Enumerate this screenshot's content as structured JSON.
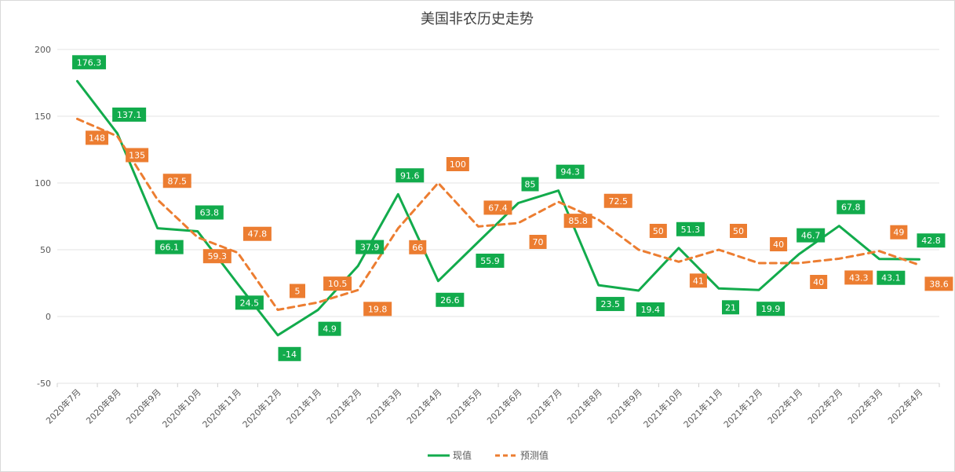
{
  "chart_data": {
    "type": "line",
    "title": "美国非农历史走势",
    "xlabel": "",
    "ylabel": "",
    "ylim": [
      -50,
      200
    ],
    "yticks": [
      -50,
      0,
      50,
      100,
      150,
      200
    ],
    "grid": true,
    "legend_position": "bottom",
    "categories": [
      "2020年7月",
      "2020年8月",
      "2020年9月",
      "2020年10月",
      "2020年11月",
      "2020年12月",
      "2021年1月",
      "2021年2月",
      "2021年3月",
      "2021年4月",
      "2021年5月",
      "2021年6月",
      "2021年7月",
      "2021年8月",
      "2021年9月",
      "2021年10月",
      "2021年11月",
      "2021年12月",
      "2022年1月",
      "2022年2月",
      "2022年3月",
      "2022年4月"
    ],
    "series": [
      {
        "name": "现值",
        "color": "#12ab4c",
        "dash": false,
        "values": [
          176.3,
          137.1,
          66.1,
          63.8,
          24.5,
          -14,
          4.9,
          37.9,
          91.6,
          26.6,
          55.9,
          85,
          94.3,
          23.5,
          19.4,
          51.3,
          21,
          19.9,
          46.7,
          67.8,
          43.1,
          42.8
        ]
      },
      {
        "name": "预测值",
        "color": "#ec7d31",
        "dash": true,
        "values": [
          148,
          135,
          87.5,
          59.3,
          47.8,
          5,
          10.5,
          19.8,
          66,
          100,
          67.4,
          70,
          85.8,
          72.5,
          50,
          41,
          50,
          40,
          40,
          43.3,
          49,
          38.6
        ]
      }
    ]
  }
}
